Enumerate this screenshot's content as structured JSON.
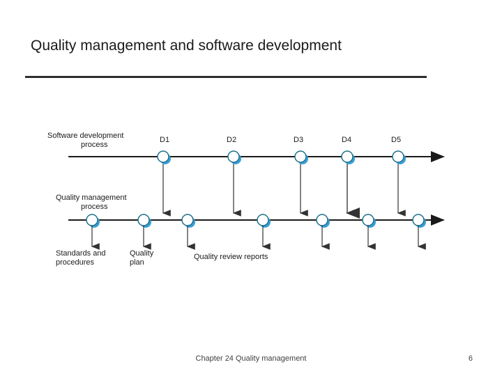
{
  "slide": {
    "title": "Quality management and software development",
    "footer": "Chapter 24 Quality management",
    "page_number": "6"
  },
  "diagram": {
    "top_process": [
      "Software development",
      "process"
    ],
    "bottom_process": [
      "Quality management",
      "process"
    ],
    "deliverables": [
      "D1",
      "D2",
      "D3",
      "D4",
      "D5"
    ],
    "outputs": {
      "standards": [
        "Standards and",
        "procedures"
      ],
      "plan": [
        "Quality",
        "plan"
      ],
      "reports": "Quality review reports"
    },
    "colors": {
      "line": "#1a1a1a",
      "node_fill": "#ffffff",
      "node_stroke": "#1f6f8b",
      "node_shadow": "#3a9fd6",
      "arrow": "#333333"
    }
  }
}
